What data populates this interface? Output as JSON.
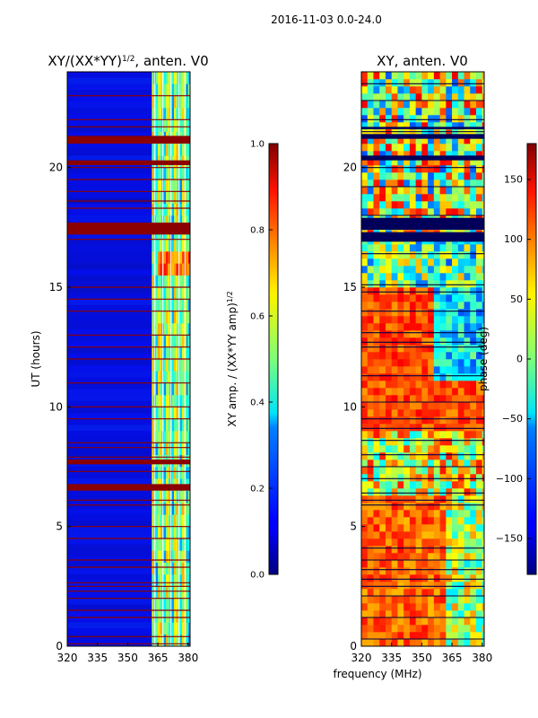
{
  "figure": {
    "suptitle": "2016-11-03 0.0-24.0",
    "xlabel": "frequency (MHz)"
  },
  "chart_data": [
    {
      "type": "heatmap",
      "title_main": "XY/(XX*YY)",
      "title_sup": "1/2",
      "title_rest": ", anten. V0",
      "xlim": [
        320,
        381
      ],
      "ylim": [
        0,
        24
      ],
      "xticks": [
        320,
        335,
        350,
        365,
        380
      ],
      "yticks": [
        0,
        5,
        10,
        15,
        20
      ],
      "ylabel": "UT (hours)",
      "colorbar": {
        "label_main": "XY amp. / (XX*YY amp)",
        "label_sup": "1/2",
        "range": [
          0.0,
          1.0
        ],
        "ticks": [
          "0.0",
          "0.2",
          "0.4",
          "0.6",
          "0.8",
          "1.0"
        ],
        "colormap": "jet"
      },
      "flagged_hours": [
        0.1,
        0.4,
        1.2,
        1.5,
        2.0,
        2.3,
        2.5,
        2.65,
        3.3,
        3.6,
        4.5,
        5.0,
        5.9,
        6.1,
        6.6,
        6.75,
        7.3,
        7.7,
        7.9,
        8.3,
        8.5,
        9.5,
        10.0,
        11.0,
        12.0,
        12.5,
        13.0,
        14.0,
        14.5,
        15.0,
        17.0,
        18.3,
        18.6,
        19.0,
        19.5,
        20.0,
        21.3,
        21.7,
        22.0,
        23.0
      ],
      "flagged_bands": [
        [
          6.5,
          6.75
        ],
        [
          7.6,
          7.8
        ],
        [
          17.2,
          17.7
        ],
        [
          20.1,
          20.3
        ],
        [
          21.0,
          21.3
        ]
      ]
    },
    {
      "type": "heatmap",
      "title": "XY, anten. V0",
      "xlim": [
        320,
        381
      ],
      "ylim": [
        0,
        24
      ],
      "xticks": [
        320,
        335,
        350,
        365,
        380
      ],
      "yticks": [
        0,
        5,
        10,
        15,
        20
      ],
      "colorbar": {
        "label": "phase (deg)",
        "range": [
          -180,
          180
        ],
        "ticks": [
          "−150",
          "−100",
          "−50",
          "0",
          "50",
          "100",
          "150"
        ],
        "tick_values": [
          -150,
          -100,
          -50,
          0,
          50,
          100,
          150
        ],
        "colormap": "jet"
      },
      "flagged_hours": [
        0.3,
        1.2,
        2.1,
        2.5,
        2.8,
        3.2,
        3.6,
        4.1,
        5.9,
        6.1,
        6.4,
        7.0,
        7.5,
        8.0,
        8.6,
        9.1,
        9.5,
        10.2,
        11.3,
        12.5,
        12.7,
        13.1,
        14.0,
        14.8,
        15.1,
        16.4,
        17.0,
        18.0,
        19.2,
        20.0,
        21.5,
        22.0,
        22.8,
        23.5
      ],
      "flagged_bands": [
        [
          16.9,
          17.3
        ],
        [
          17.4,
          17.9
        ],
        [
          20.3,
          20.5
        ],
        [
          21.2,
          21.4
        ],
        [
          21.6,
          21.7
        ]
      ]
    }
  ]
}
